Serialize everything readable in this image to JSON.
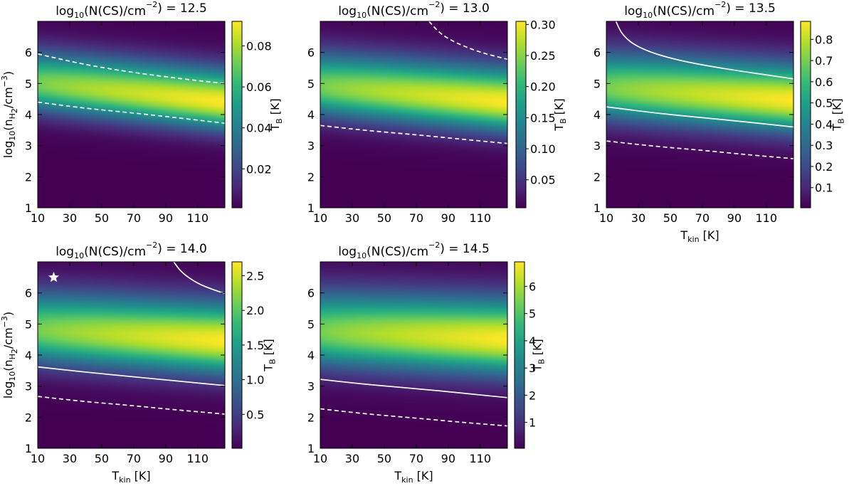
{
  "figure": {
    "colormap": "viridis",
    "colormap_stops": [
      "#440154",
      "#482878",
      "#3e4a89",
      "#31688e",
      "#26828e",
      "#1f9e89",
      "#35b779",
      "#6ece58",
      "#b5de2b",
      "#fde725"
    ],
    "contour_color": "#ffffff",
    "marker_color": "#ffffff",
    "marker": {
      "symbol": "star",
      "x": 20,
      "y": 6.5,
      "panel": 3
    }
  },
  "chart_data": [
    {
      "type": "heatmap",
      "title_prefix": "log",
      "title_sub": "10",
      "title_mid": "(N(CS)/cm",
      "title_sup": "−2",
      "title_suffix": ") = 12.5",
      "xlabel": "",
      "ylabel": "log10(nH2/cm−3)",
      "xlim": [
        10,
        127
      ],
      "ylim": [
        1,
        7
      ],
      "xticks": [
        "10",
        "30",
        "50",
        "70",
        "90",
        "110"
      ],
      "yticks": [
        "1",
        "2",
        "3",
        "4",
        "5",
        "6"
      ],
      "colorbar": {
        "label": "T_B [K]",
        "range": [
          0.001,
          0.092
        ],
        "ticks": [
          "0.02",
          "0.04",
          "0.06",
          "0.08"
        ]
      },
      "ridge": {
        "y_at_10K": 5.0,
        "y_at_127K": 4.4,
        "width": 0.75
      },
      "contours": [
        {
          "style": "dashed",
          "points": [
            [
              10,
              5.95
            ],
            [
              40,
              5.6
            ],
            [
              70,
              5.35
            ],
            [
              100,
              5.15
            ],
            [
              127,
              5.0
            ]
          ]
        },
        {
          "style": "dashed",
          "points": [
            [
              10,
              4.4
            ],
            [
              40,
              4.2
            ],
            [
              70,
              4.05
            ],
            [
              100,
              3.88
            ],
            [
              127,
              3.72
            ]
          ]
        }
      ]
    },
    {
      "type": "heatmap",
      "title_prefix": "log",
      "title_sub": "10",
      "title_mid": "(N(CS)/cm",
      "title_sup": "−2",
      "title_suffix": ") = 13.0",
      "xlabel": "",
      "ylabel": "",
      "xlim": [
        10,
        127
      ],
      "ylim": [
        1,
        7
      ],
      "xticks": [
        "10",
        "30",
        "50",
        "70",
        "90",
        "110"
      ],
      "yticks": [
        "1",
        "2",
        "3",
        "4",
        "5",
        "6"
      ],
      "colorbar": {
        "label": "T_B [K]",
        "range": [
          0.005,
          0.305
        ],
        "ticks": [
          "0.05",
          "0.10",
          "0.15",
          "0.20",
          "0.25",
          "0.30"
        ]
      },
      "ridge": {
        "y_at_10K": 4.9,
        "y_at_127K": 4.4,
        "width": 0.8
      },
      "contours": [
        {
          "style": "dashed",
          "points": [
            [
              78,
              7.0
            ],
            [
              85,
              6.6
            ],
            [
              95,
              6.3
            ],
            [
              110,
              6.0
            ],
            [
              127,
              5.78
            ]
          ]
        },
        {
          "style": "dashed",
          "points": [
            [
              10,
              3.65
            ],
            [
              40,
              3.48
            ],
            [
              70,
              3.35
            ],
            [
              100,
              3.2
            ],
            [
              127,
              3.07
            ]
          ]
        }
      ]
    },
    {
      "type": "heatmap",
      "title_prefix": "log",
      "title_sub": "10",
      "title_mid": "(N(CS)/cm",
      "title_sup": "−2",
      "title_suffix": ") = 13.5",
      "xlabel": "T_kin [K]",
      "ylabel": "",
      "xlim": [
        10,
        127
      ],
      "ylim": [
        1,
        7
      ],
      "xticks": [
        "10",
        "30",
        "50",
        "70",
        "90",
        "110"
      ],
      "yticks": [
        "1",
        "2",
        "3",
        "4",
        "5",
        "6"
      ],
      "colorbar": {
        "label": "T_B [K]",
        "range": [
          0.005,
          0.885
        ],
        "ticks": [
          "0.1",
          "0.2",
          "0.3",
          "0.4",
          "0.5",
          "0.6",
          "0.7",
          "0.8"
        ]
      },
      "ridge": {
        "y_at_10K": 4.85,
        "y_at_127K": 4.45,
        "width": 0.85
      },
      "contours": [
        {
          "style": "solid",
          "points": [
            [
              16,
              7.0
            ],
            [
              20,
              6.55
            ],
            [
              30,
              6.15
            ],
            [
              50,
              5.8
            ],
            [
              80,
              5.5
            ],
            [
              127,
              5.15
            ]
          ]
        },
        {
          "style": "solid",
          "points": [
            [
              10,
              4.25
            ],
            [
              40,
              4.05
            ],
            [
              70,
              3.9
            ],
            [
              100,
              3.75
            ],
            [
              127,
              3.6
            ]
          ]
        },
        {
          "style": "dashed",
          "points": [
            [
              10,
              3.15
            ],
            [
              40,
              2.98
            ],
            [
              70,
              2.85
            ],
            [
              100,
              2.7
            ],
            [
              127,
              2.58
            ]
          ]
        }
      ]
    },
    {
      "type": "heatmap",
      "title_prefix": "log",
      "title_sub": "10",
      "title_mid": "(N(CS)/cm",
      "title_sup": "−2",
      "title_suffix": ") = 14.0",
      "xlabel": "T_kin [K]",
      "ylabel": "log10(nH2/cm−3)",
      "xlim": [
        10,
        127
      ],
      "ylim": [
        1,
        7
      ],
      "xticks": [
        "10",
        "30",
        "50",
        "70",
        "90",
        "110"
      ],
      "yticks": [
        "1",
        "2",
        "3",
        "4",
        "5",
        "6"
      ],
      "colorbar": {
        "label": "T_B [K]",
        "range": [
          0.01,
          2.7
        ],
        "ticks": [
          "0.5",
          "1.0",
          "1.5",
          "2.0",
          "2.5"
        ]
      },
      "ridge": {
        "y_at_10K": 4.8,
        "y_at_127K": 4.45,
        "width": 0.9
      },
      "contours": [
        {
          "style": "solid",
          "points": [
            [
              95,
              7.0
            ],
            [
              100,
              6.65
            ],
            [
              110,
              6.3
            ],
            [
              120,
              6.1
            ],
            [
              127,
              5.98
            ]
          ]
        },
        {
          "style": "solid",
          "points": [
            [
              10,
              3.62
            ],
            [
              40,
              3.45
            ],
            [
              70,
              3.3
            ],
            [
              100,
              3.15
            ],
            [
              127,
              3.02
            ]
          ]
        },
        {
          "style": "dashed",
          "points": [
            [
              10,
              2.67
            ],
            [
              40,
              2.5
            ],
            [
              70,
              2.37
            ],
            [
              100,
              2.22
            ],
            [
              127,
              2.1
            ]
          ]
        }
      ]
    },
    {
      "type": "heatmap",
      "title_prefix": "log",
      "title_sub": "10",
      "title_mid": "(N(CS)/cm",
      "title_sup": "−2",
      "title_suffix": ") = 14.5",
      "xlabel": "T_kin [K]",
      "ylabel": "",
      "xlim": [
        10,
        127
      ],
      "ylim": [
        1,
        7
      ],
      "xticks": [
        "10",
        "30",
        "50",
        "70",
        "90",
        "110"
      ],
      "yticks": [
        "1",
        "2",
        "3",
        "4",
        "5",
        "6"
      ],
      "colorbar": {
        "label": "T_B [K]",
        "range": [
          0.05,
          6.9
        ],
        "ticks": [
          "1",
          "2",
          "3",
          "4",
          "5",
          "6"
        ]
      },
      "ridge": {
        "y_at_10K": 4.75,
        "y_at_127K": 4.5,
        "width": 0.95
      },
      "contours": [
        {
          "style": "solid",
          "points": [
            [
              10,
              3.22
            ],
            [
              40,
              3.05
            ],
            [
              70,
              2.92
            ],
            [
              100,
              2.77
            ],
            [
              127,
              2.63
            ]
          ]
        },
        {
          "style": "dashed",
          "points": [
            [
              10,
              2.27
            ],
            [
              40,
              2.1
            ],
            [
              70,
              1.97
            ],
            [
              100,
              1.83
            ],
            [
              127,
              1.72
            ]
          ]
        }
      ]
    }
  ]
}
